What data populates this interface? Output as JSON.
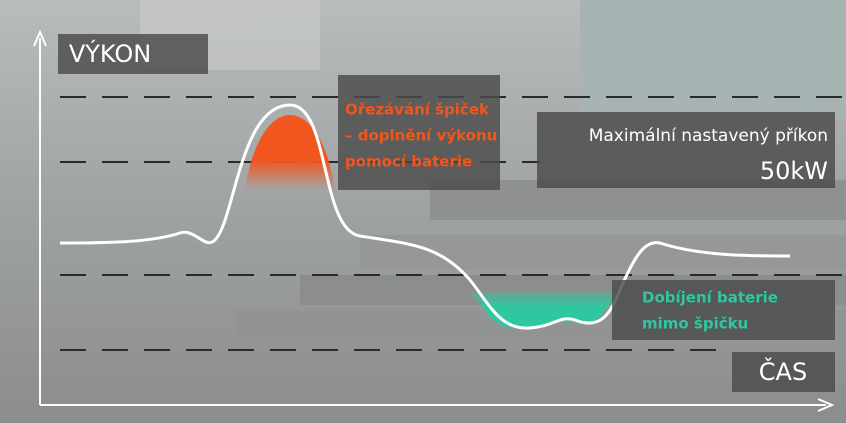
{
  "axes": {
    "y_label": "VÝKON",
    "x_label": "ČAS"
  },
  "peak_shaving": {
    "lines": [
      "Ořezávání špiček",
      "– doplnění výkonu",
      "pomocí baterie"
    ]
  },
  "off_peak_charging": {
    "lines": [
      "Dobíjení baterie",
      "mimo špičku"
    ]
  },
  "max_power": {
    "label": "Maximální nastavený příkon",
    "value": "50kW"
  }
}
